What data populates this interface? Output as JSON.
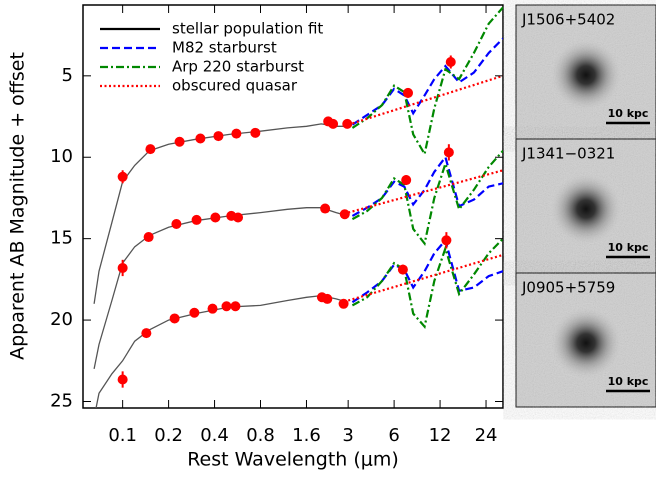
{
  "chart_data": {
    "type": "line",
    "xlabel": "Rest Wavelength (μm)",
    "ylabel": "Apparent AB Magnitude + offset",
    "xscale": "log",
    "xlim": [
      0.055,
      31
    ],
    "xticks": [
      0.1,
      0.2,
      0.4,
      0.8,
      1.6,
      3,
      6,
      12,
      24
    ],
    "ylim": [
      25.4,
      0.65
    ],
    "yticks": [
      5,
      10,
      15,
      20,
      25
    ],
    "legend": "upper left",
    "series": [
      {
        "name": "stellar population fit",
        "color": "#000000",
        "line_color": "#555555",
        "dash": "solid",
        "x": [
          0.065,
          0.07,
          0.085,
          0.1,
          0.12,
          0.15,
          0.2,
          0.3,
          0.5,
          0.8,
          1.2,
          1.6,
          2.0,
          2.5,
          3.0,
          null,
          0.065,
          0.07,
          0.085,
          0.1,
          0.12,
          0.15,
          0.2,
          0.3,
          0.5,
          0.8,
          1.2,
          1.6,
          2.0,
          2.5,
          3.0,
          null,
          0.065,
          0.07,
          0.085,
          0.1,
          0.12,
          0.15,
          0.2,
          0.3,
          0.5,
          0.8,
          1.2,
          1.6,
          2.0,
          2.5,
          3.0
        ],
        "values": [
          19,
          17,
          14,
          11.5,
          10.5,
          9.6,
          9.2,
          8.9,
          8.6,
          8.4,
          8.2,
          8.1,
          7.95,
          8.1,
          8.1,
          null,
          23,
          21.5,
          18.8,
          16.5,
          15.5,
          14.8,
          14.3,
          13.9,
          13.6,
          13.4,
          13.2,
          13.1,
          13.1,
          13.4,
          13.6,
          null,
          26,
          24.5,
          23.3,
          22.5,
          21.3,
          20.6,
          20.0,
          19.6,
          19.2,
          19.1,
          18.8,
          18.6,
          18.5,
          18.7,
          18.9
        ]
      },
      {
        "name": "M82 starburst",
        "color": "#0000ff",
        "dash": "dashed",
        "x": [
          3.2,
          4,
          5,
          6,
          7,
          8,
          9.5,
          11,
          13,
          16,
          20,
          25,
          31,
          null,
          3.2,
          4,
          5,
          6,
          7,
          8,
          9.5,
          11,
          13,
          16,
          20,
          25,
          31,
          null,
          3.2,
          4,
          5,
          6,
          7,
          8,
          9.5,
          11,
          13,
          16,
          20,
          25,
          31
        ],
        "values": [
          8.0,
          7.4,
          6.8,
          5.8,
          6.2,
          7.3,
          6.2,
          5.2,
          4.4,
          5.4,
          4.8,
          3.6,
          2.7,
          null,
          13.6,
          13.1,
          12.5,
          11.5,
          11.8,
          12.9,
          12.0,
          10.9,
          10.0,
          13.0,
          12.6,
          11.8,
          11.6,
          null,
          18.9,
          18.3,
          17.6,
          16.6,
          16.9,
          18.0,
          17.0,
          15.9,
          15.1,
          18.2,
          18.0,
          17.3,
          17.0
        ]
      },
      {
        "name": "Arp 220 starburst",
        "color": "#008800",
        "dash": "dashdot",
        "x": [
          3.2,
          4,
          5,
          6,
          7,
          8,
          9.5,
          11,
          13,
          16,
          20,
          25,
          31,
          null,
          3.2,
          4,
          5,
          6,
          7,
          8,
          9.5,
          11,
          13,
          16,
          20,
          25,
          31,
          null,
          3.2,
          4,
          5,
          6,
          7,
          8,
          9.5,
          11,
          13,
          16,
          20,
          25,
          31
        ],
        "values": [
          8.2,
          7.6,
          6.8,
          5.6,
          6.0,
          8.6,
          9.8,
          7.0,
          4.6,
          5.2,
          3.6,
          1.8,
          0.8,
          null,
          13.8,
          13.3,
          12.5,
          11.3,
          11.7,
          14.4,
          15.3,
          12.5,
          10.4,
          13.2,
          12.0,
          10.6,
          9.6,
          null,
          19.1,
          18.6,
          17.6,
          16.5,
          16.9,
          19.6,
          20.4,
          17.6,
          15.6,
          18.4,
          17.2,
          15.9,
          15.0
        ]
      },
      {
        "name": "obscured quasar",
        "color": "#ff0000",
        "dash": "dotted",
        "x": [
          3,
          31,
          null,
          3,
          31,
          null,
          3,
          31
        ],
        "values": [
          8.0,
          5.0,
          null,
          13.4,
          10.8,
          null,
          18.8,
          16.0
        ]
      },
      {
        "type": "scatter",
        "color": "#ff0000",
        "x": [
          0.1,
          0.152,
          0.236,
          0.323,
          0.424,
          0.556,
          0.74,
          2.22,
          2.39,
          2.96,
          7.4,
          14.1,
          0.1,
          0.148,
          0.225,
          0.305,
          0.405,
          0.515,
          0.57,
          2.12,
          2.85,
          7.2,
          13.7,
          0.1,
          0.143,
          0.219,
          0.295,
          0.388,
          0.479,
          0.548,
          2.02,
          2.19,
          2.8,
          6.85,
          13.2
        ],
        "values": [
          11.2,
          9.5,
          9.05,
          8.85,
          8.7,
          8.55,
          8.5,
          7.8,
          7.95,
          7.95,
          6.05,
          4.15,
          16.8,
          14.9,
          14.1,
          13.85,
          13.7,
          13.6,
          13.7,
          13.15,
          13.5,
          11.4,
          9.7,
          23.65,
          20.8,
          19.9,
          19.55,
          19.3,
          19.15,
          19.15,
          18.6,
          18.7,
          19.0,
          16.9,
          15.1
        ],
        "errors": [
          0.4,
          0.1,
          0.1,
          0.1,
          0.1,
          0.1,
          0.1,
          0.1,
          0.1,
          0.1,
          0.3,
          0.4,
          0.5,
          0.1,
          0.1,
          0.1,
          0.1,
          0.1,
          0.1,
          0.1,
          0.1,
          0.3,
          0.5,
          0.5,
          0.1,
          0.1,
          0.1,
          0.1,
          0.1,
          0.1,
          0.1,
          0.1,
          0.1,
          0.3,
          0.5
        ]
      }
    ]
  },
  "panels": [
    {
      "label": "J1506+5402",
      "scale": "10 kpc"
    },
    {
      "label": "J1341−0321",
      "scale": "10 kpc"
    },
    {
      "label": "J0905+5759",
      "scale": "10 kpc"
    }
  ]
}
